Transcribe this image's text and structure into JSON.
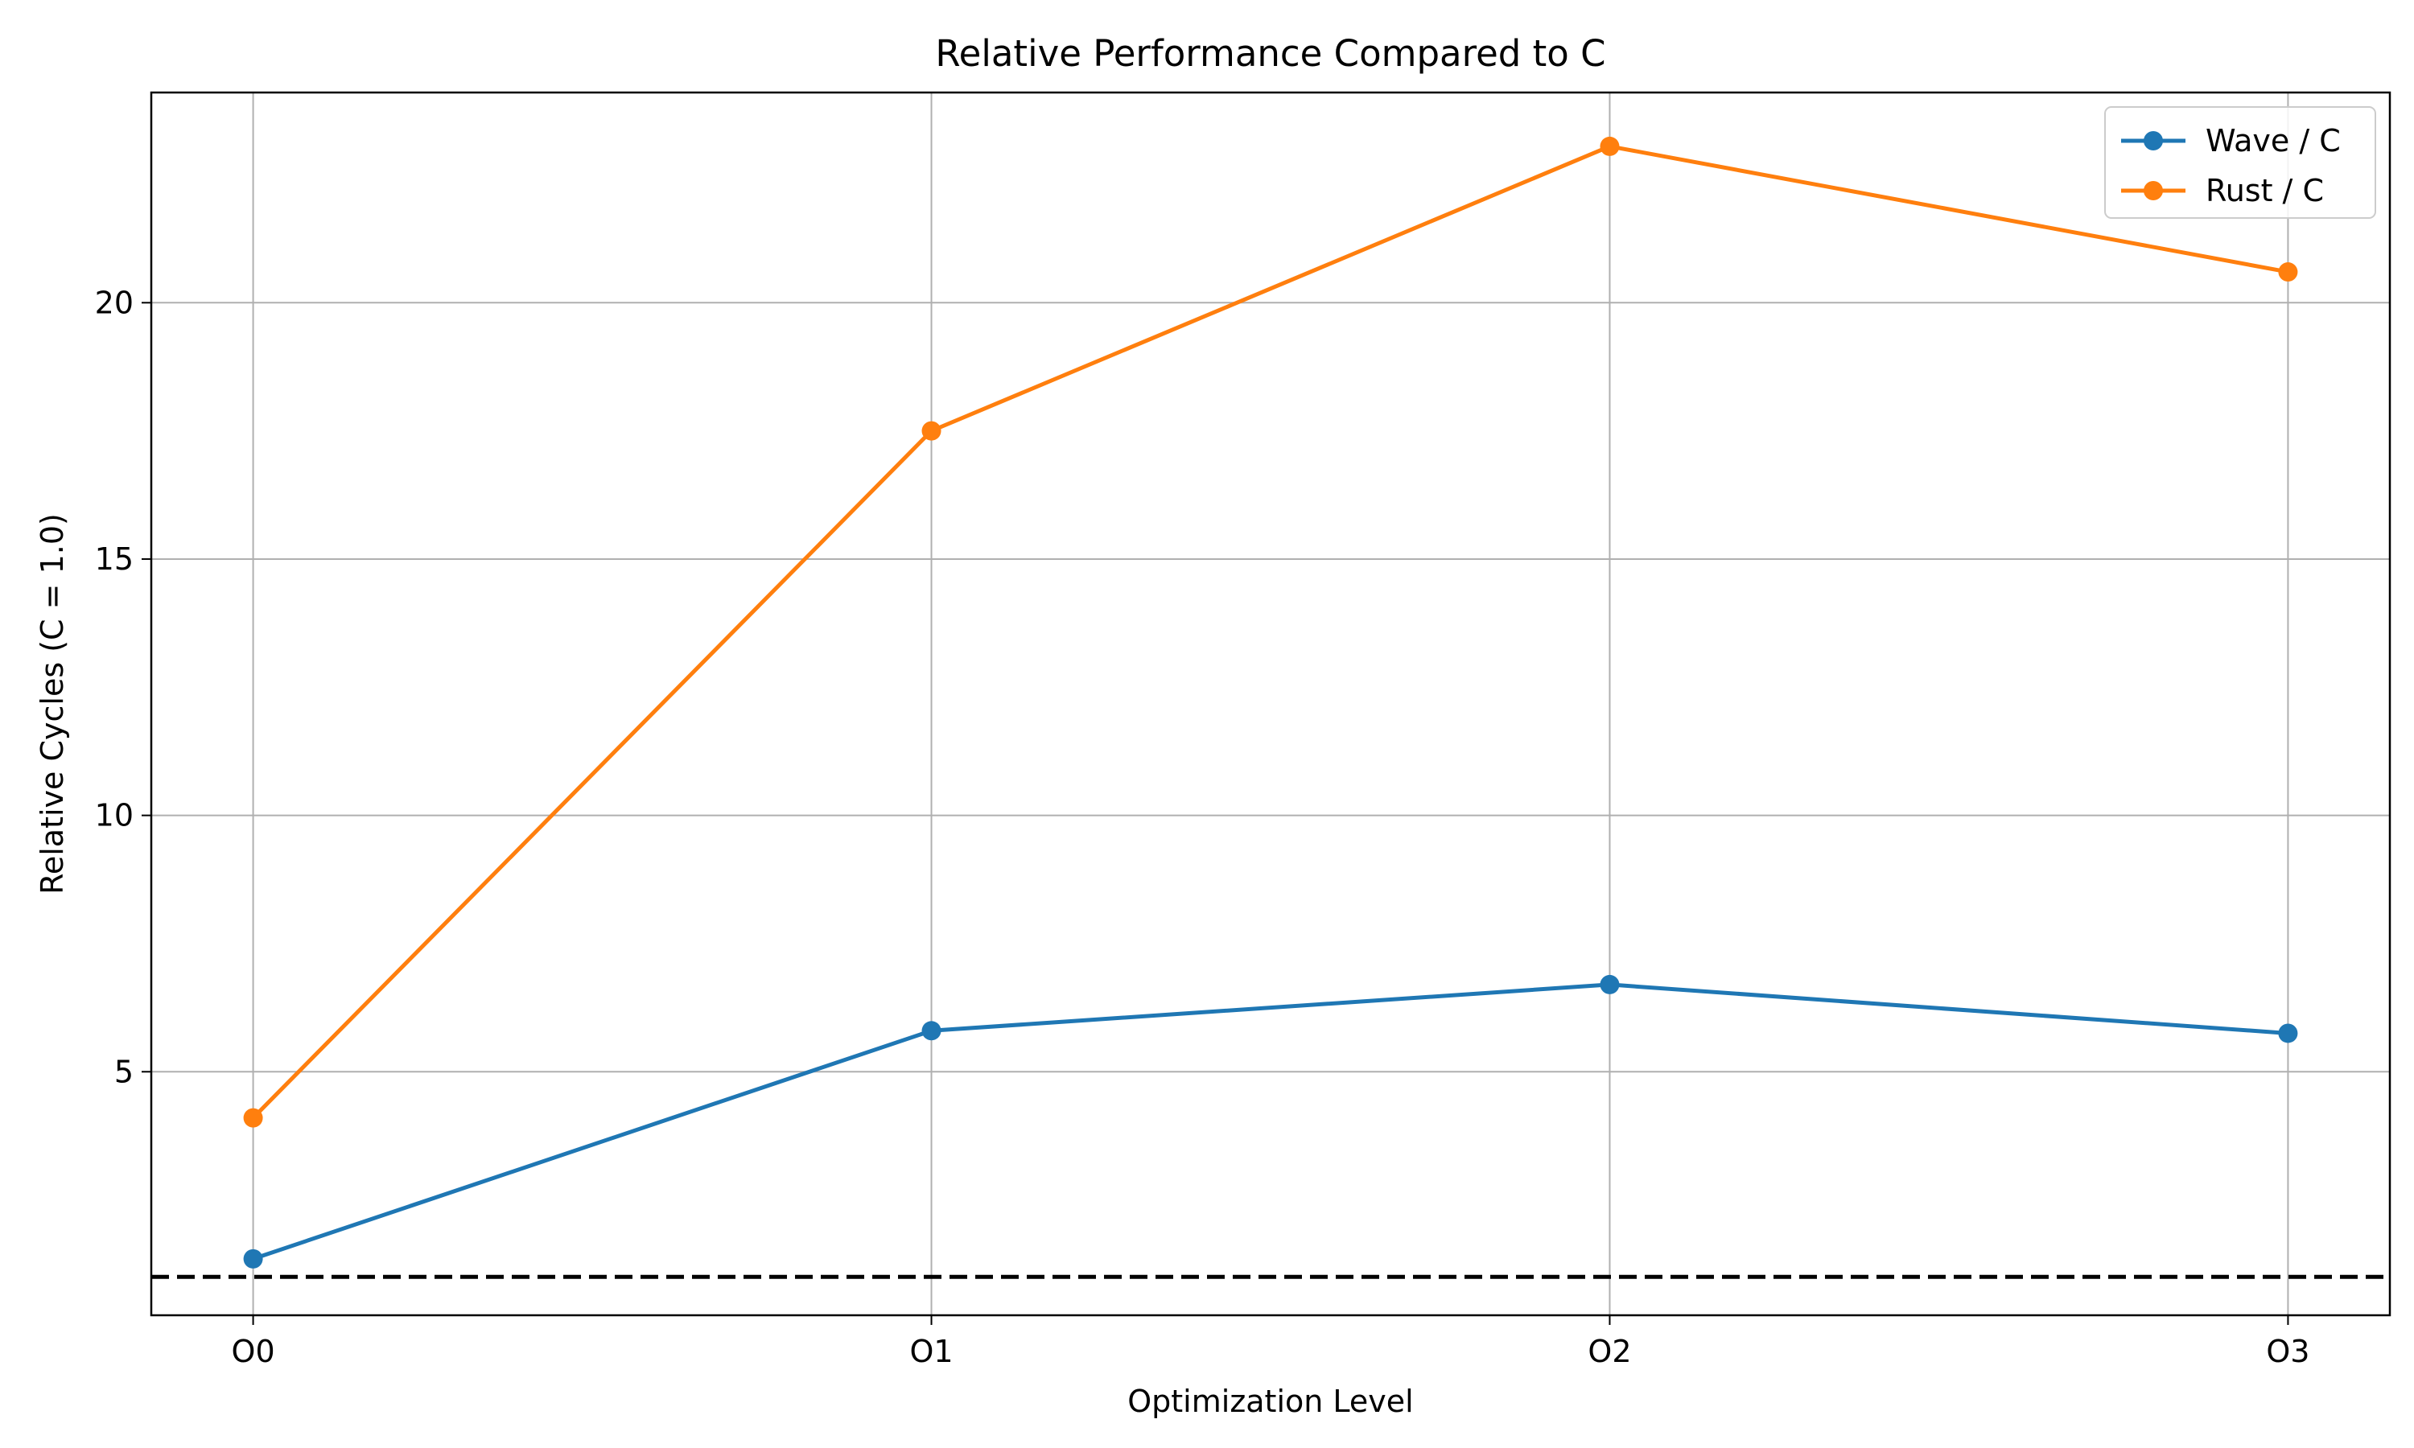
{
  "chart_data": {
    "type": "line",
    "title": "Relative Performance Compared to C",
    "xlabel": "Optimization Level",
    "ylabel": "Relative Cycles (C = 1.0)",
    "categories": [
      "O0",
      "O1",
      "O2",
      "O3"
    ],
    "series": [
      {
        "name": "Wave / C",
        "color": "#1f77b4",
        "values": [
          1.35,
          5.8,
          6.7,
          5.75
        ],
        "marker": "circle"
      },
      {
        "name": "Rust / C",
        "color": "#ff7f0e",
        "values": [
          4.1,
          17.5,
          23.05,
          20.6
        ],
        "marker": "circle"
      }
    ],
    "reference_line": {
      "y": 1.0,
      "color": "#000000",
      "style": "dashed"
    },
    "ylim": [
      0.25,
      24.1
    ],
    "yticks": [
      5,
      10,
      15,
      20
    ],
    "ytick_labels": [
      "5",
      "10",
      "15",
      "20"
    ],
    "grid": true,
    "legend_position": "top-right"
  }
}
